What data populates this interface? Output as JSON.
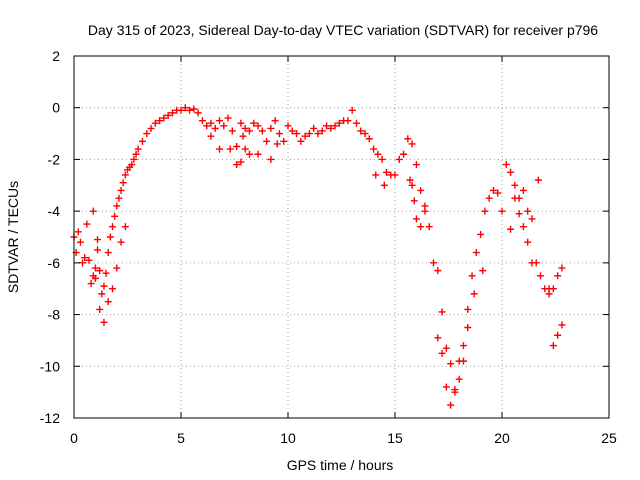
{
  "chart_data": {
    "type": "scatter",
    "title": "Day 315 of 2023, Sidereal Day-to-day VTEC variation (SDTVAR) for receiver p796",
    "xlabel": "GPS time / hours",
    "ylabel": "SDTVAR / TECUs",
    "xlim": [
      0,
      25
    ],
    "ylim": [
      -12,
      2
    ],
    "xticks": [
      0,
      5,
      10,
      15,
      20,
      25
    ],
    "yticks": [
      2,
      0,
      -2,
      -4,
      -6,
      -8,
      -10,
      -12
    ],
    "xtick_labels": [
      "0",
      "5",
      "10",
      "15",
      "20",
      "25"
    ],
    "ytick_labels": [
      "2",
      "0",
      "-2",
      "-4",
      "-6",
      "-8",
      "-10",
      "-12"
    ],
    "grid": true,
    "marker": "+",
    "color": "#ff0000",
    "series": [
      {
        "name": "SDTVAR",
        "x": [
          0.0,
          0.1,
          0.2,
          0.3,
          0.4,
          0.5,
          0.6,
          0.7,
          0.8,
          0.9,
          1.0,
          1.1,
          1.2,
          1.3,
          1.4,
          1.5,
          1.6,
          1.7,
          1.8,
          1.9,
          2.0,
          2.1,
          2.2,
          2.3,
          2.4,
          2.5,
          2.6,
          2.7,
          2.8,
          2.9,
          3.0,
          3.2,
          3.4,
          3.6,
          3.8,
          4.0,
          4.2,
          4.4,
          4.6,
          4.8,
          5.0,
          5.2,
          5.4,
          5.6,
          5.8,
          6.0,
          6.2,
          6.4,
          6.6,
          6.8,
          7.0,
          7.2,
          7.4,
          7.6,
          7.8,
          8.0,
          8.2,
          8.4,
          8.6,
          8.8,
          9.0,
          9.2,
          9.4,
          9.6,
          9.8,
          10.0,
          10.2,
          10.4,
          10.6,
          10.8,
          11.0,
          11.2,
          11.4,
          11.6,
          11.8,
          12.0,
          12.2,
          12.4,
          12.6,
          12.8,
          13.0,
          13.2,
          13.4,
          13.6,
          13.8,
          14.0,
          14.2,
          14.4,
          14.6,
          14.8,
          15.0,
          15.2,
          15.4,
          15.6,
          15.8,
          16.0,
          16.2,
          16.4,
          16.6,
          16.8,
          17.0,
          17.2,
          17.4,
          17.6,
          17.8,
          18.0,
          18.2,
          18.4,
          18.6,
          18.8,
          19.0,
          19.2,
          19.4,
          19.6,
          19.8,
          20.0,
          20.2,
          20.4,
          20.6,
          20.8,
          21.0,
          21.2,
          21.4,
          21.6,
          21.8,
          22.0,
          22.2,
          22.4,
          22.6,
          22.8,
          1.0,
          1.2,
          1.4,
          1.6,
          1.8,
          2.0,
          2.2,
          2.4,
          7.6,
          7.8,
          8.0,
          8.2,
          15.8,
          16.0,
          16.2,
          16.4,
          17.0,
          17.2,
          17.4,
          17.6,
          17.8,
          18.0,
          18.2,
          18.4,
          20.4,
          20.6,
          20.8,
          21.0,
          21.2,
          21.4,
          22.4,
          22.6,
          22.8,
          0.9,
          1.1,
          6.4,
          6.8,
          7.3,
          7.9,
          8.6,
          9.2,
          9.5,
          14.1,
          14.5,
          15.7,
          15.9,
          18.7,
          19.1,
          21.7,
          22.2
        ],
        "y": [
          -5.0,
          -5.6,
          -4.8,
          -5.2,
          -6.0,
          -5.8,
          -4.5,
          -5.9,
          -6.8,
          -6.5,
          -6.2,
          -5.5,
          -6.3,
          -7.2,
          -6.9,
          -6.4,
          -5.6,
          -5.0,
          -4.6,
          -4.2,
          -3.8,
          -3.5,
          -3.2,
          -2.9,
          -2.6,
          -2.4,
          -2.3,
          -2.2,
          -2.0,
          -1.8,
          -1.6,
          -1.3,
          -1.0,
          -0.8,
          -0.6,
          -0.5,
          -0.4,
          -0.3,
          -0.2,
          -0.1,
          -0.1,
          0.0,
          -0.1,
          -0.05,
          -0.2,
          -0.5,
          -0.7,
          -0.6,
          -0.8,
          -0.5,
          -0.7,
          -0.4,
          -0.9,
          -1.5,
          -0.6,
          -0.8,
          -0.9,
          -0.6,
          -0.7,
          -0.9,
          -1.3,
          -0.8,
          -0.5,
          -1.0,
          -1.3,
          -0.7,
          -0.9,
          -1.0,
          -1.3,
          -1.1,
          -1.0,
          -0.8,
          -1.0,
          -0.9,
          -0.7,
          -0.8,
          -0.7,
          -0.6,
          -0.5,
          -0.5,
          -0.1,
          -0.6,
          -0.9,
          -1.0,
          -1.2,
          -1.6,
          -1.8,
          -2.0,
          -2.5,
          -2.6,
          -2.6,
          -2.0,
          -1.8,
          -1.2,
          -1.4,
          -2.2,
          -3.2,
          -3.8,
          -4.6,
          -6.0,
          -8.9,
          -9.5,
          -10.8,
          -11.5,
          -11.0,
          -9.8,
          -9.2,
          -7.8,
          -6.5,
          -5.6,
          -4.9,
          -4.0,
          -3.5,
          -3.2,
          -3.3,
          -4.0,
          -2.2,
          -2.5,
          -3.0,
          -3.5,
          -3.2,
          -4.0,
          -4.3,
          -6.0,
          -6.5,
          -7.0,
          -7.2,
          -7.0,
          -6.5,
          -6.2,
          -6.6,
          -7.8,
          -8.3,
          -7.5,
          -7.0,
          -6.2,
          -5.2,
          -4.6,
          -2.2,
          -2.1,
          -1.6,
          -1.8,
          -3.0,
          -4.3,
          -4.6,
          -4.0,
          -6.3,
          -7.9,
          -9.3,
          -9.9,
          -10.9,
          -10.5,
          -9.8,
          -8.5,
          -4.7,
          -3.5,
          -4.1,
          -4.6,
          -5.2,
          -6.0,
          -9.2,
          -8.8,
          -8.4,
          -4.0,
          -5.1,
          -1.1,
          -1.6,
          -1.6,
          -1.1,
          -1.8,
          -2.0,
          -1.4,
          -2.6,
          -3.0,
          -2.8,
          -3.6,
          -7.2,
          -6.3,
          -2.8,
          -7.0
        ]
      }
    ]
  }
}
